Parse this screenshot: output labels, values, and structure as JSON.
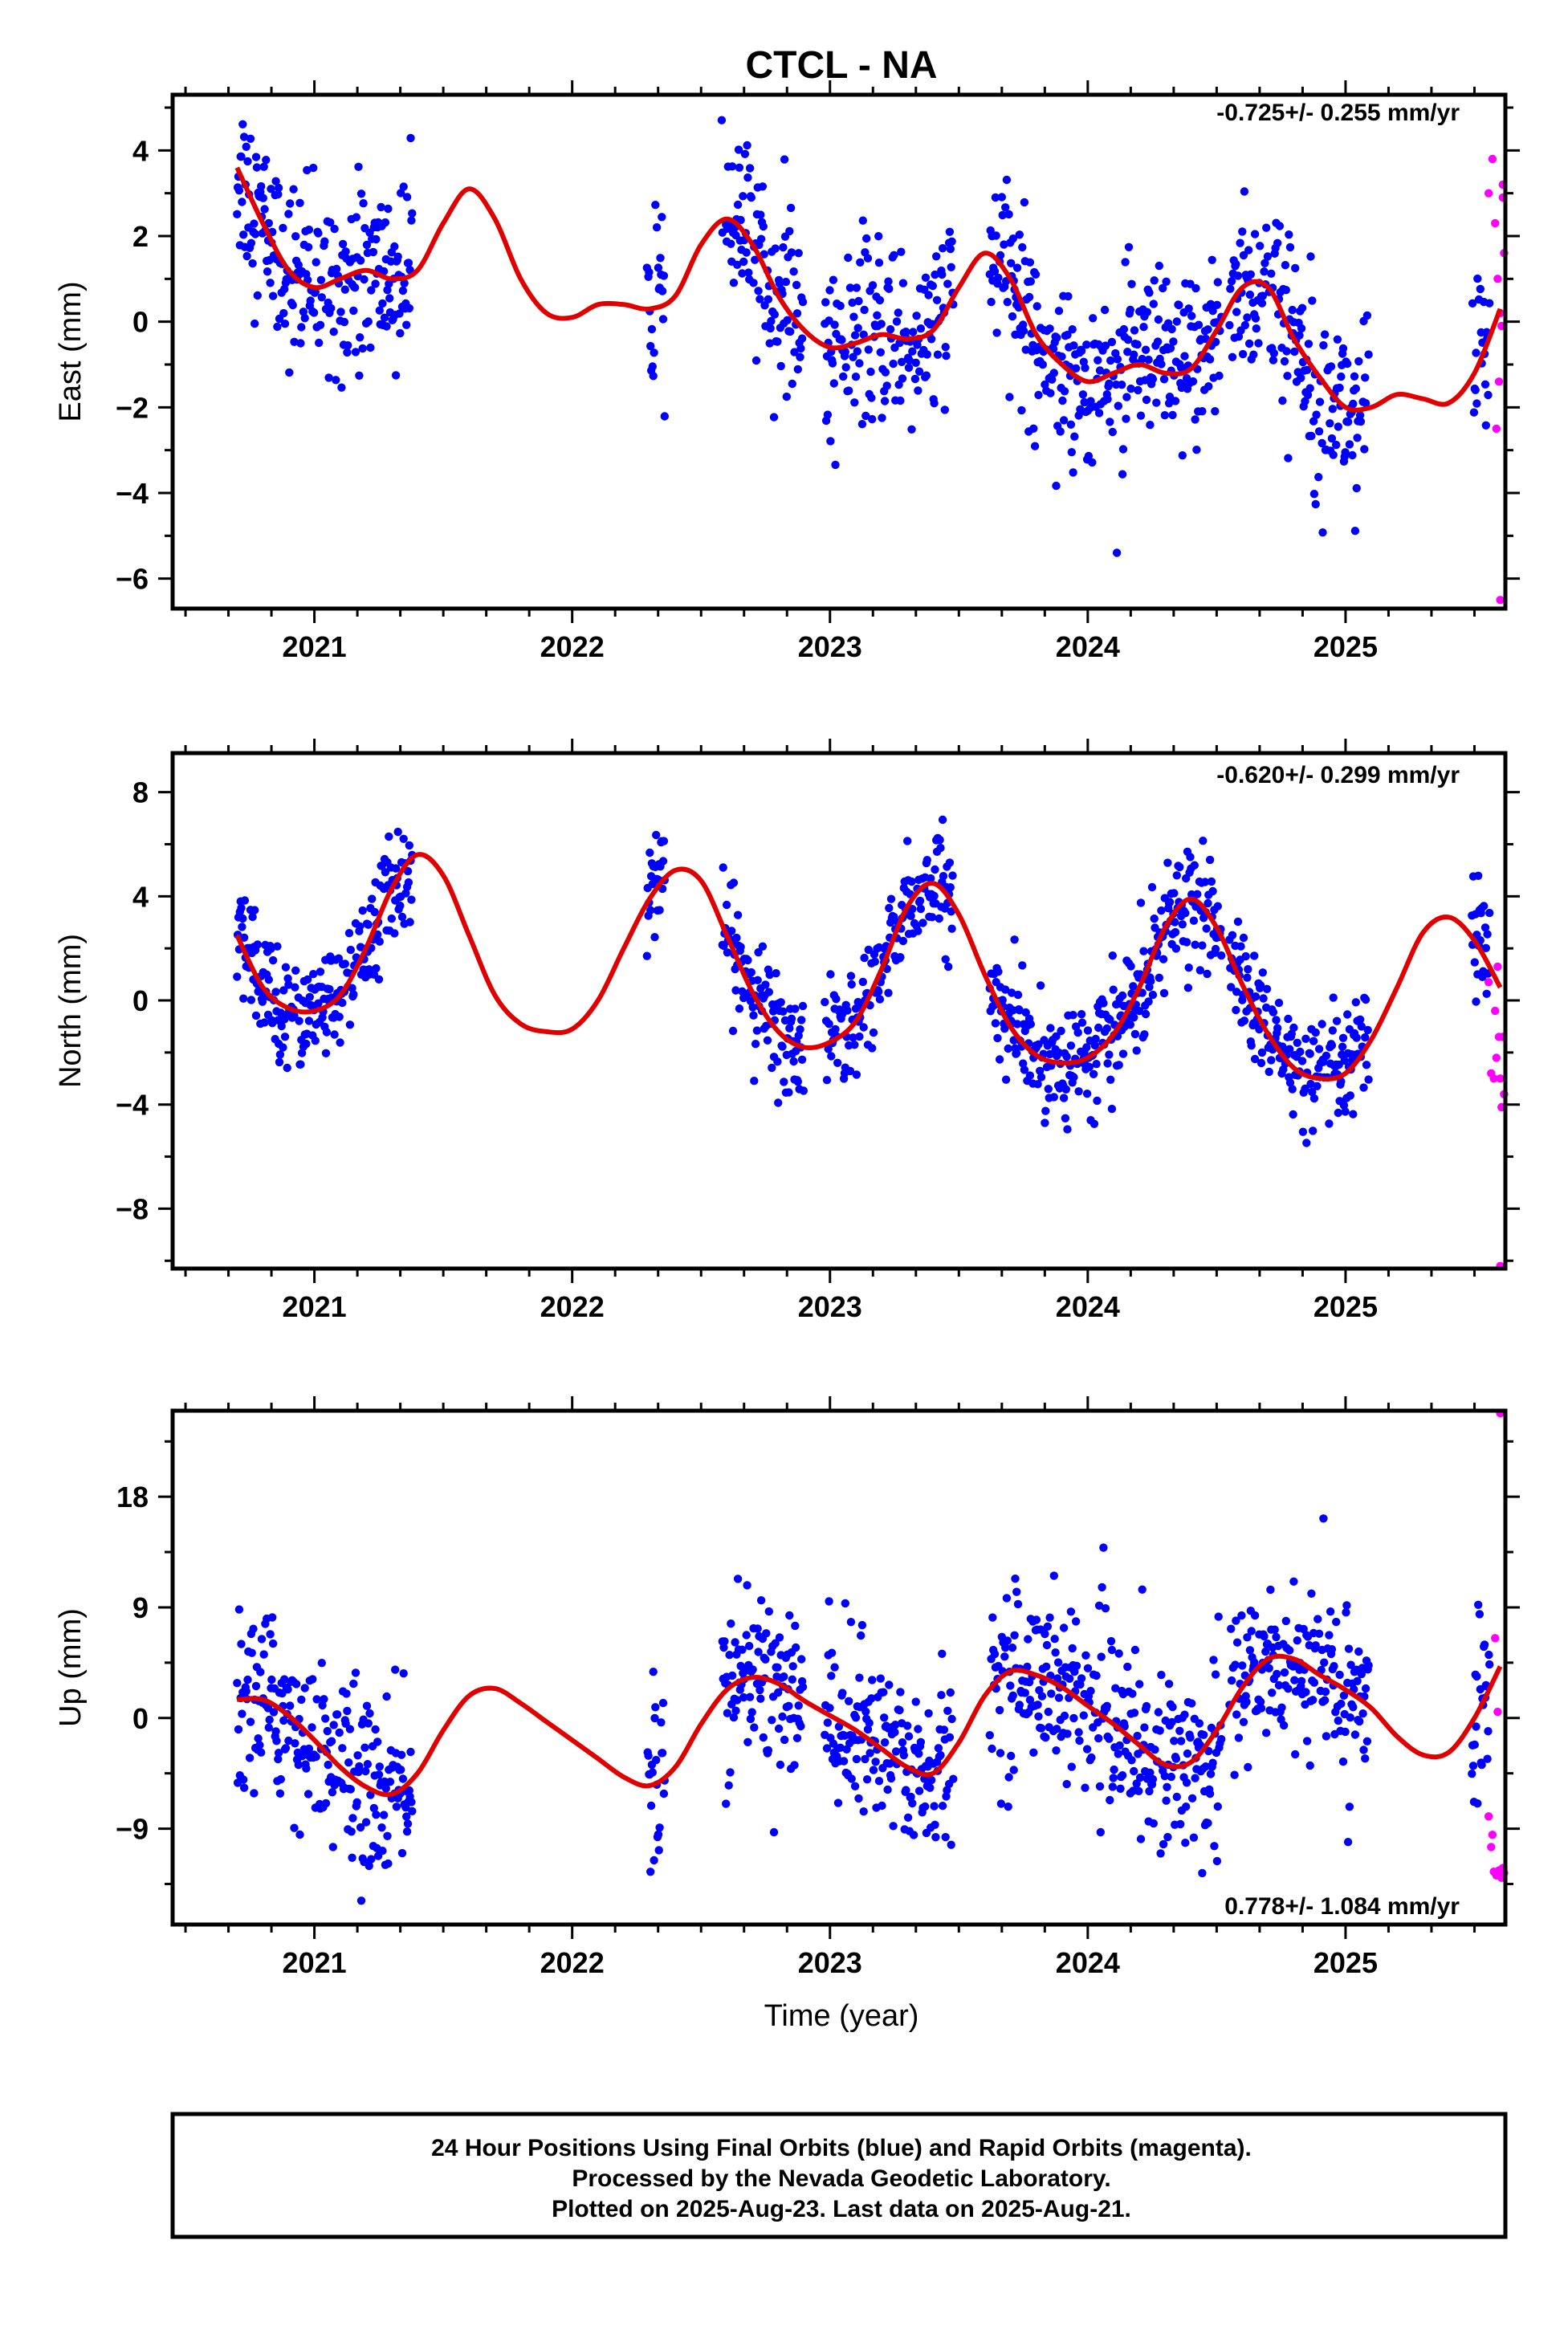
{
  "title": "CTCL - NA",
  "xlabel": "Time (year)",
  "colors": {
    "final": "#0000ff",
    "rapid": "#ff00ff",
    "fit": "#e00000"
  },
  "footer": {
    "line1": "24 Hour Positions Using Final Orbits (blue) and Rapid Orbits (magenta).",
    "line2": "Processed by the Nevada Geodetic Laboratory.",
    "line3": "Plotted on 2025-Aug-23. Last data on 2025-Aug-21."
  },
  "chart_data": [
    {
      "type": "scatter",
      "ylabel": "East (mm)",
      "rate": "-0.725+/- 0.255 mm/yr",
      "rate_position": "top-right",
      "xlim": [
        2020.45,
        2025.62
      ],
      "ylim": [
        -6.7,
        5.3
      ],
      "x_ticks": [
        2021,
        2022,
        2023,
        2024,
        2025
      ],
      "x_tick_labels": [
        "2021",
        "2022",
        "2023",
        "2024",
        "2025"
      ],
      "y_ticks": [
        -6,
        -4,
        -2,
        0,
        2,
        4
      ],
      "y_tick_labels": [
        "−6",
        "−4",
        "−2",
        "0",
        "2",
        "4"
      ],
      "segments": [
        [
          2020.7,
          2021.38
        ],
        [
          2022.29,
          2022.36
        ],
        [
          2022.58,
          2022.9
        ],
        [
          2022.98,
          2023.48
        ],
        [
          2023.62,
          2024.52
        ],
        [
          2024.55,
          2025.09
        ],
        [
          2025.49,
          2025.56
        ]
      ],
      "noise_sd": 1.05,
      "fit": {
        "x": [
          2020.7,
          2020.8,
          2020.9,
          2021.0,
          2021.1,
          2021.2,
          2021.3,
          2021.4,
          2021.5,
          2021.6,
          2021.7,
          2021.8,
          2021.9,
          2022.0,
          2022.1,
          2022.2,
          2022.3,
          2022.4,
          2022.5,
          2022.6,
          2022.7,
          2022.8,
          2022.9,
          2023.0,
          2023.1,
          2023.2,
          2023.3,
          2023.4,
          2023.5,
          2023.6,
          2023.7,
          2023.8,
          2023.9,
          2024.0,
          2024.1,
          2024.2,
          2024.3,
          2024.4,
          2024.5,
          2024.6,
          2024.7,
          2024.8,
          2024.9,
          2025.0,
          2025.1,
          2025.2,
          2025.3,
          2025.4,
          2025.5,
          2025.6
        ],
        "y": [
          3.6,
          2.3,
          1.2,
          0.8,
          1.0,
          1.2,
          1.0,
          1.2,
          2.3,
          3.1,
          2.4,
          1.0,
          0.2,
          0.1,
          0.4,
          0.4,
          0.3,
          0.6,
          1.8,
          2.4,
          1.8,
          0.6,
          -0.2,
          -0.6,
          -0.5,
          -0.3,
          -0.4,
          -0.2,
          0.8,
          1.6,
          1.0,
          -0.3,
          -1.0,
          -1.4,
          -1.2,
          -1.0,
          -1.2,
          -1.1,
          -0.2,
          0.8,
          0.8,
          -0.4,
          -1.3,
          -2.0,
          -2.0,
          -1.7,
          -1.8,
          -1.9,
          -1.2,
          0.3
        ]
      },
      "rapid": {
        "x": [
          2025.555,
          2025.57,
          2025.58,
          2025.59,
          2025.6,
          2025.61,
          2025.615,
          2025.605,
          2025.595,
          2025.585,
          2025.6,
          2025.61
        ],
        "y": [
          3.0,
          3.8,
          2.3,
          1.0,
          0.2,
          3.2,
          1.6,
          -0.1,
          -1.4,
          -2.5,
          -6.5,
          2.9
        ]
      }
    },
    {
      "type": "scatter",
      "ylabel": "North (mm)",
      "rate": "-0.620+/- 0.299 mm/yr",
      "rate_position": "top-right",
      "xlim": [
        2020.45,
        2025.62
      ],
      "ylim": [
        -10.3,
        9.5
      ],
      "x_ticks": [
        2021,
        2022,
        2023,
        2024,
        2025
      ],
      "x_tick_labels": [
        "2021",
        "2022",
        "2023",
        "2024",
        "2025"
      ],
      "y_ticks": [
        -8,
        -4,
        0,
        4,
        8
      ],
      "y_tick_labels": [
        "−8",
        "−4",
        "0",
        "4",
        "8"
      ],
      "segments": [
        [
          2020.7,
          2021.38
        ],
        [
          2022.29,
          2022.36
        ],
        [
          2022.58,
          2022.9
        ],
        [
          2022.98,
          2023.48
        ],
        [
          2023.62,
          2024.52
        ],
        [
          2024.55,
          2025.09
        ],
        [
          2025.49,
          2025.56
        ]
      ],
      "noise_sd": 1.05,
      "fit": {
        "x": [
          2020.7,
          2020.8,
          2020.9,
          2021.0,
          2021.1,
          2021.2,
          2021.3,
          2021.4,
          2021.5,
          2021.6,
          2021.7,
          2021.8,
          2021.9,
          2022.0,
          2022.1,
          2022.2,
          2022.3,
          2022.4,
          2022.5,
          2022.6,
          2022.7,
          2022.8,
          2022.9,
          2023.0,
          2023.1,
          2023.2,
          2023.3,
          2023.4,
          2023.5,
          2023.6,
          2023.7,
          2023.8,
          2023.9,
          2024.0,
          2024.1,
          2024.2,
          2024.3,
          2024.4,
          2024.5,
          2024.6,
          2024.7,
          2024.8,
          2024.9,
          2025.0,
          2025.1,
          2025.2,
          2025.3,
          2025.4,
          2025.5,
          2025.6
        ],
        "y": [
          2.5,
          0.5,
          -0.3,
          -0.4,
          0.2,
          2.0,
          4.3,
          5.6,
          4.8,
          2.5,
          0.2,
          -0.9,
          -1.2,
          -1.1,
          0.0,
          2.0,
          3.9,
          5.0,
          4.6,
          2.5,
          0.3,
          -1.2,
          -1.8,
          -1.6,
          -0.8,
          1.2,
          3.6,
          4.5,
          3.3,
          1.0,
          -1.0,
          -2.1,
          -2.4,
          -2.2,
          -1.3,
          0.5,
          2.8,
          3.9,
          2.8,
          0.6,
          -1.3,
          -2.6,
          -3.0,
          -2.8,
          -1.5,
          0.5,
          2.6,
          3.2,
          2.3,
          0.5
        ]
      },
      "rapid": {
        "x": [
          2025.555,
          2025.565,
          2025.575,
          2025.585,
          2025.595,
          2025.605,
          2025.615,
          2025.6,
          2025.59,
          2025.61,
          2025.58,
          2025.6
        ],
        "y": [
          0.7,
          -2.8,
          -3.0,
          -2.2,
          -1.4,
          -4.1,
          -3.6,
          -10.2,
          1.3,
          -1.4,
          -0.4,
          -3.0
        ]
      }
    },
    {
      "type": "scatter",
      "ylabel": "Up (mm)",
      "rate": "0.778+/- 1.084 mm/yr",
      "rate_position": "bottom-right",
      "xlim": [
        2020.45,
        2025.62
      ],
      "ylim": [
        -16.8,
        25.0
      ],
      "x_ticks": [
        2021,
        2022,
        2023,
        2024,
        2025
      ],
      "x_tick_labels": [
        "2021",
        "2022",
        "2023",
        "2024",
        "2025"
      ],
      "y_ticks": [
        -9,
        0,
        9,
        18
      ],
      "y_tick_labels": [
        "−9",
        "0",
        "9",
        "18"
      ],
      "segments": [
        [
          2020.7,
          2021.38
        ],
        [
          2022.29,
          2022.36
        ],
        [
          2022.58,
          2022.9
        ],
        [
          2022.98,
          2023.48
        ],
        [
          2023.62,
          2024.52
        ],
        [
          2024.55,
          2025.09
        ],
        [
          2025.49,
          2025.56
        ]
      ],
      "noise_sd": 3.6,
      "fit": {
        "x": [
          2020.7,
          2020.8,
          2020.9,
          2021.0,
          2021.1,
          2021.2,
          2021.3,
          2021.4,
          2021.5,
          2021.6,
          2021.7,
          2021.8,
          2021.9,
          2022.0,
          2022.1,
          2022.2,
          2022.3,
          2022.4,
          2022.5,
          2022.6,
          2022.7,
          2022.8,
          2022.9,
          2023.0,
          2023.1,
          2023.2,
          2023.3,
          2023.4,
          2023.5,
          2023.6,
          2023.7,
          2023.8,
          2023.9,
          2024.0,
          2024.1,
          2024.2,
          2024.3,
          2024.4,
          2024.5,
          2024.6,
          2024.7,
          2024.8,
          2024.9,
          2025.0,
          2025.1,
          2025.2,
          2025.3,
          2025.4,
          2025.5,
          2025.6
        ],
        "y": [
          1.5,
          1.5,
          0.2,
          -1.8,
          -4.0,
          -5.6,
          -6.2,
          -4.5,
          -1.0,
          1.8,
          2.4,
          1.2,
          -0.3,
          -1.8,
          -3.3,
          -4.8,
          -5.5,
          -4.0,
          -0.5,
          2.3,
          3.3,
          2.8,
          1.4,
          0.2,
          -1.0,
          -2.5,
          -4.0,
          -4.5,
          -2.0,
          1.8,
          3.8,
          3.5,
          2.5,
          1.0,
          -0.5,
          -2.2,
          -3.8,
          -3.6,
          -1.0,
          2.5,
          4.8,
          4.8,
          3.5,
          2.3,
          0.8,
          -1.5,
          -3.0,
          -2.8,
          0.0,
          4.2
        ]
      },
      "rapid": {
        "x": [
          2025.555,
          2025.565,
          2025.575,
          2025.585,
          2025.595,
          2025.605,
          2025.615,
          2025.6,
          2025.58,
          2025.61,
          2025.59,
          2025.57
        ],
        "y": [
          -8.0,
          -10.5,
          -12.5,
          -12.8,
          -12.4,
          -13.0,
          -12.6,
          24.8,
          6.5,
          -12.2,
          0.5,
          -9.5
        ]
      }
    }
  ]
}
